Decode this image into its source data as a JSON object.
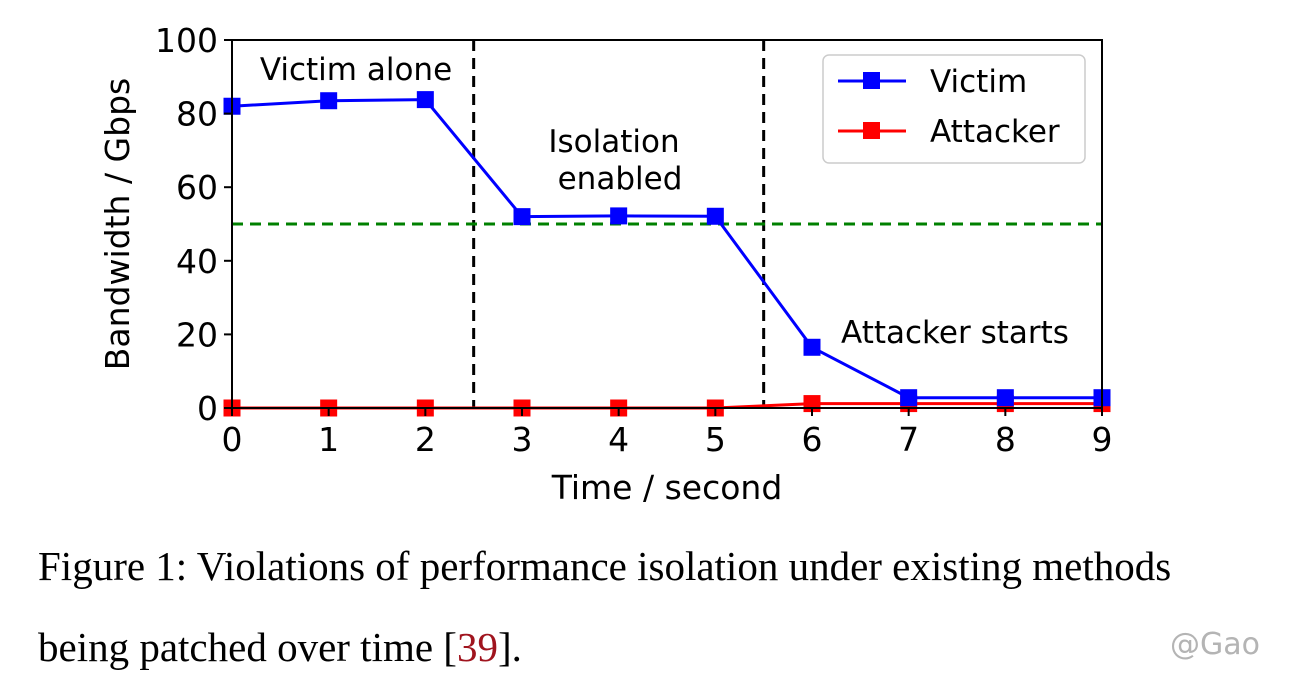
{
  "chart_data": {
    "type": "line",
    "x": [
      0,
      1,
      2,
      3,
      4,
      5,
      6,
      7,
      8,
      9
    ],
    "series": [
      {
        "name": "Victim",
        "color": "#0000ff",
        "marker": "square",
        "values": [
          82,
          83.5,
          83.8,
          52,
          52.2,
          52.1,
          16.5,
          2.8,
          2.8,
          2.8
        ]
      },
      {
        "name": "Attacker",
        "color": "#ff0000",
        "marker": "square",
        "values": [
          0,
          0,
          0,
          0,
          0,
          0,
          1.2,
          1.2,
          1.2,
          1.2
        ]
      }
    ],
    "xlabel": "Time / second",
    "ylabel": "Bandwidth / Gbps",
    "xlim": [
      0,
      9
    ],
    "ylim": [
      0,
      100
    ],
    "xticks": [
      "0",
      "1",
      "2",
      "3",
      "4",
      "5",
      "6",
      "7",
      "8",
      "9"
    ],
    "yticks": [
      "0",
      "20",
      "40",
      "60",
      "80",
      "100"
    ],
    "grid": false,
    "legend_position": "top-right",
    "vlines": [
      {
        "x": 2.5,
        "color": "#000000",
        "style": "dashed"
      },
      {
        "x": 5.5,
        "color": "#000000",
        "style": "dashed"
      }
    ],
    "hline": {
      "y": 50,
      "color": "#008000",
      "style": "dashed"
    },
    "annotations": [
      {
        "text": "Victim alone"
      },
      {
        "text": "Isolation",
        "text2": "enabled"
      },
      {
        "text": "Attacker starts"
      }
    ]
  },
  "caption": {
    "line1": "Figure 1: Violations of performance isolation under existing methods",
    "line2_prefix": "being patched over time [",
    "ref": "39",
    "line2_suffix": "]."
  },
  "watermark": "@Gao"
}
